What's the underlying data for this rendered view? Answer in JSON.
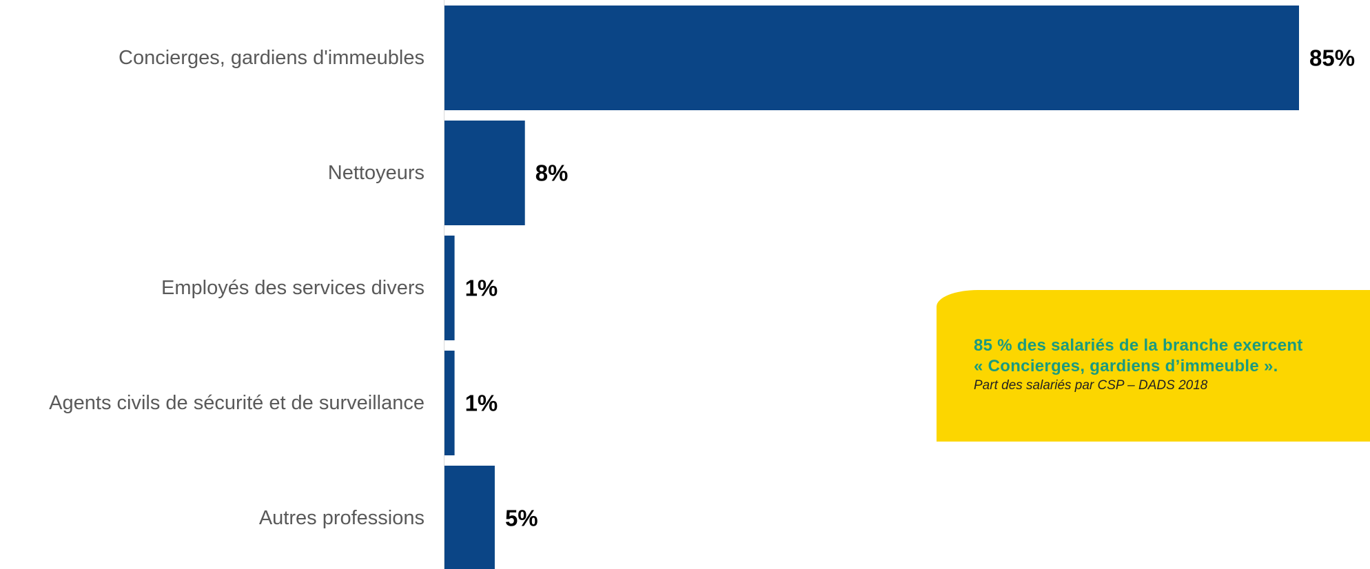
{
  "chart_data": {
    "type": "bar",
    "orientation": "horizontal",
    "categories": [
      "Concierges, gardiens d'immeubles",
      "Nettoyeurs",
      "Employés des services divers",
      "Agents civils de sécurité et de surveillance",
      "Autres professions"
    ],
    "values": [
      85,
      8,
      1,
      1,
      5
    ],
    "value_labels": [
      "85%",
      "8%",
      "1%",
      "1%",
      "5%"
    ],
    "unit": "%",
    "xlim": [
      0,
      85
    ],
    "grid": false,
    "bar_color": "#0b4586"
  },
  "callout": {
    "line1": "85 % des salariés de la branche exercent",
    "line2": "« Concierges, gardiens d’immeuble ».",
    "source": "Part des salariés par CSP – DADS 2018",
    "background": "#fcd600",
    "text_color": "#1a9a80"
  }
}
